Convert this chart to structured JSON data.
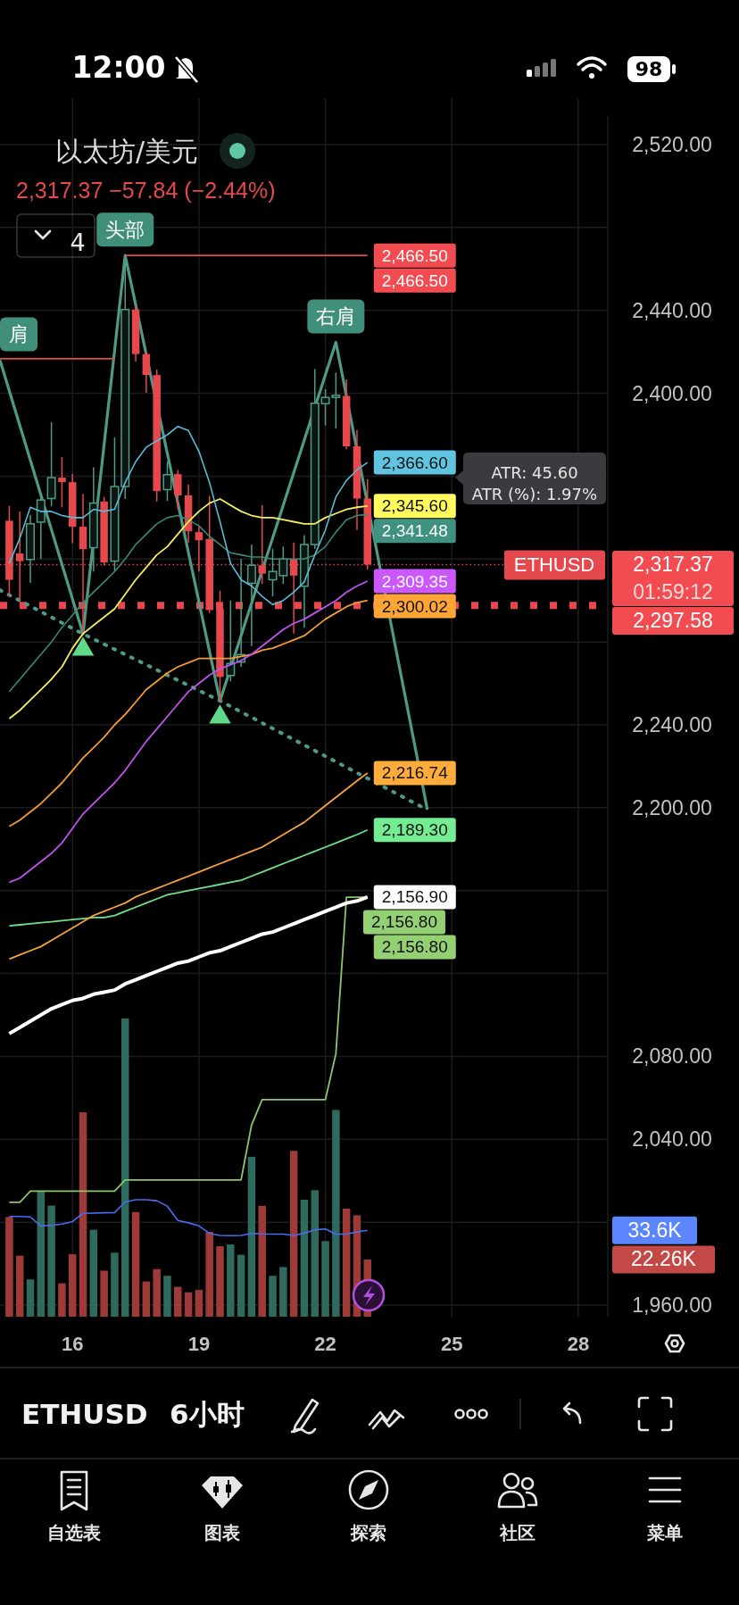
{
  "chart_data": {
    "type": "candlestick",
    "title": "以太坊/美元",
    "subtitle": "2,317.37 −57.84 (−2.44%)",
    "x": [
      14.5,
      14.75,
      15,
      15.25,
      15.5,
      15.75,
      16,
      16.25,
      16.5,
      16.75,
      17,
      17.25,
      17.5,
      17.75,
      18,
      18.25,
      18.5,
      18.75,
      19,
      19.25,
      19.5,
      19.75,
      20,
      20.25,
      20.5,
      20.75,
      21,
      21.25,
      21.5,
      21.75,
      22,
      22.25,
      22.5,
      22.75,
      23
    ],
    "ohlc": [
      [
        2338.5,
        2345.6,
        2302,
        2310
      ],
      [
        2322.7,
        2343,
        2300,
        2319
      ],
      [
        2319.8,
        2341.3,
        2308.5,
        2337
      ],
      [
        2337.8,
        2350,
        2320,
        2348.5
      ],
      [
        2349.2,
        2386,
        2345.6,
        2359.3
      ],
      [
        2359.3,
        2369.3,
        2345,
        2357.1
      ],
      [
        2357.1,
        2361,
        2327.7,
        2335.6
      ],
      [
        2335.6,
        2351.4,
        2283.9,
        2324.8
      ],
      [
        2325.5,
        2364.3,
        2314,
        2347
      ],
      [
        2347.8,
        2350,
        2317,
        2318.4
      ],
      [
        2319,
        2378.7,
        2314,
        2355
      ],
      [
        2355,
        2466.5,
        2349,
        2440.4
      ],
      [
        2440.4,
        2442,
        2415.3,
        2418.9
      ],
      [
        2418.9,
        2420,
        2400.2,
        2408.8
      ],
      [
        2408.8,
        2411.5,
        2347.8,
        2352.8
      ],
      [
        2353.5,
        2367,
        2348,
        2360.7
      ],
      [
        2361,
        2363,
        2344,
        2350.7
      ],
      [
        2350.7,
        2356,
        2328,
        2333.4
      ],
      [
        2333,
        2336,
        2314,
        2329.1
      ],
      [
        2329.7,
        2350.5,
        2294,
        2295.4
      ],
      [
        2296.1,
        2304.7,
        2250.9,
        2263.1
      ],
      [
        2263.8,
        2300,
        2261,
        2269.6
      ],
      [
        2270.3,
        2320,
        2268,
        2273.9
      ],
      [
        2308.3,
        2327,
        2278,
        2317
      ],
      [
        2317,
        2346,
        2308,
        2313
      ],
      [
        2310,
        2325,
        2302,
        2314
      ],
      [
        2312,
        2326,
        2308,
        2320
      ],
      [
        2320,
        2328,
        2284,
        2312
      ],
      [
        2306.9,
        2331.5,
        2286.8,
        2327
      ],
      [
        2327,
        2411.7,
        2325,
        2395.2
      ],
      [
        2395,
        2402,
        2384.4,
        2398
      ],
      [
        2398,
        2410,
        2383,
        2399
      ],
      [
        2398.7,
        2406.7,
        2373,
        2374.4
      ],
      [
        2374.4,
        2382.3,
        2334,
        2349.2
      ],
      [
        2349.2,
        2358.6,
        2315,
        2317.37
      ]
    ],
    "colors": [
      "#e5484d",
      "#e5484d",
      "#4e9c86",
      "#4e9c86",
      "#4e9c86",
      "#e5484d",
      "#e5484d",
      "#e5484d",
      "#4e9c86",
      "#e5484d",
      "#4e9c86",
      "#4e9c86",
      "#e5484d",
      "#e5484d",
      "#e5484d",
      "#4e9c86",
      "#e5484d",
      "#e5484d",
      "#e5484d",
      "#e5484d",
      "#e5484d",
      "#4e9c86",
      "#4e9c86",
      "#4e9c86",
      "#e5484d",
      "#4e9c86",
      "#4e9c86",
      "#e5484d",
      "#4e9c86",
      "#4e9c86",
      "#4e9c86",
      "#4e9c86",
      "#e5484d",
      "#e5484d",
      "#e5484d"
    ],
    "series": [
      {
        "type": "bar",
        "axis": "y2",
        "values": [
          38.8,
          23.7,
          14.5,
          48.6,
          43.2,
          13,
          24.3,
          79.5,
          33.8,
          17.9,
          24.9,
          116,
          40.7,
          13.7,
          18.5,
          15.9,
          11.6,
          9.5,
          10.4,
          33,
          27.4,
          28.1,
          24.1,
          62.2,
          43.1,
          15.9,
          19.3,
          64.5,
          45.5,
          49.2,
          29.4,
          80.4,
          42,
          39.4,
          22.26
        ],
        "colors": [
          "#9e3a38",
          "#9e3a38",
          "#2e6b5e",
          "#2e6b5e",
          "#2e6b5e",
          "#9e3a38",
          "#9e3a38",
          "#9e3a38",
          "#2e6b5e",
          "#9e3a38",
          "#2e6b5e",
          "#2e6b5e",
          "#9e3a38",
          "#9e3a38",
          "#9e3a38",
          "#2e6b5e",
          "#9e3a38",
          "#9e3a38",
          "#9e3a38",
          "#9e3a38",
          "#9e3a38",
          "#2e6b5e",
          "#2e6b5e",
          "#2e6b5e",
          "#9e3a38",
          "#2e6b5e",
          "#2e6b5e",
          "#9e3a38",
          "#2e6b5e",
          "#2e6b5e",
          "#2e6b5e",
          "#2e6b5e",
          "#9e3a38",
          "#9e3a38",
          "#9e3a38"
        ]
      },
      {
        "type": "line",
        "axis": "y2",
        "color": "#4a6cf0",
        "values": [
          39,
          39,
          38.8,
          35.3,
          35.6,
          36,
          37,
          40.2,
          40.3,
          40.4,
          40.5,
          44.6,
          45.5,
          45.5,
          45.1,
          43,
          37.4,
          36.5,
          35.3,
          32.4,
          31.6,
          31.5,
          31.6,
          32.4,
          32.2,
          32.1,
          32.1,
          31.6,
          32.5,
          33.8,
          34.1,
          32.1,
          32.1,
          33,
          33.6
        ]
      },
      {
        "type": "line",
        "color": "#8bc56d",
        "values": [
          2009.6,
          2009.6,
          2015,
          2015,
          2015,
          2015,
          2015,
          2015,
          2015,
          2015,
          2015,
          2020.4,
          2020.4,
          2020.4,
          2020.4,
          2020.4,
          2020.4,
          2020.4,
          2020.4,
          2020.4,
          2020.4,
          2020.4,
          2020.4,
          2047,
          2059.1,
          2059.1,
          2059.1,
          2059.1,
          2059.1,
          2059.1,
          2059.1,
          2081.4,
          2156.8,
          2156.8,
          2156.8
        ],
        "value_labels": [
          null,
          null,
          null,
          null,
          null,
          null,
          null,
          null,
          null,
          null,
          null,
          null,
          null,
          null,
          null,
          null,
          null,
          null,
          null,
          null,
          null,
          null,
          null,
          null,
          null,
          null,
          null,
          null,
          null,
          null,
          null,
          null,
          null,
          "2,156.80",
          "2,156.80"
        ]
      },
      {
        "type": "line",
        "color": "#ffffff",
        "values": [
          2091,
          2094,
          2097,
          2100,
          2103,
          2105,
          2107,
          2108,
          2110,
          2111,
          2112,
          2115,
          2117,
          2119,
          2121,
          2123,
          2125,
          2126,
          2128,
          2130,
          2131,
          2133,
          2135,
          2137,
          2139,
          2140,
          2142,
          2144,
          2146,
          2148,
          2150,
          2152,
          2154,
          2155,
          2156.9
        ],
        "value_labels": [
          null,
          null,
          null,
          null,
          null,
          null,
          null,
          null,
          null,
          null,
          null,
          null,
          null,
          null,
          null,
          null,
          null,
          null,
          null,
          null,
          null,
          null,
          null,
          null,
          null,
          null,
          null,
          null,
          null,
          null,
          null,
          null,
          null,
          null,
          "2,156.90"
        ]
      },
      {
        "type": "line",
        "color": "#6ee08a",
        "values": [
          2143,
          2143.5,
          2144,
          2144.5,
          2145,
          2145.5,
          2146,
          2146.5,
          2147,
          2147,
          2148,
          2150,
          2152,
          2154,
          2156,
          2158,
          2159,
          2160,
          2161,
          2162,
          2163,
          2164,
          2165,
          2167,
          2169,
          2171,
          2173,
          2175,
          2177,
          2179,
          2181,
          2183,
          2185,
          2187,
          2189.3
        ],
        "value_labels": [
          null,
          null,
          null,
          null,
          null,
          null,
          null,
          null,
          null,
          null,
          null,
          null,
          null,
          null,
          null,
          null,
          null,
          null,
          null,
          null,
          null,
          null,
          null,
          null,
          null,
          null,
          null,
          null,
          null,
          null,
          null,
          null,
          null,
          null,
          "2,189.30"
        ]
      },
      {
        "type": "line",
        "color": "#f5a33a",
        "values": [
          2127,
          2129,
          2131,
          2133,
          2136,
          2139,
          2142,
          2145,
          2148,
          2150,
          2152,
          2154,
          2157,
          2159,
          2161,
          2163,
          2165,
          2167,
          2169,
          2171,
          2173,
          2175,
          2177,
          2179,
          2181,
          2184,
          2187,
          2190,
          2193,
          2197,
          2201,
          2205,
          2209,
          2213,
          2216.74
        ],
        "value_labels": [
          null,
          null,
          null,
          null,
          null,
          null,
          null,
          null,
          null,
          null,
          null,
          null,
          null,
          null,
          null,
          null,
          null,
          null,
          null,
          null,
          null,
          null,
          null,
          null,
          null,
          null,
          null,
          null,
          null,
          null,
          null,
          null,
          null,
          null,
          "2,216.74"
        ]
      },
      {
        "type": "line",
        "color": "#f39c32",
        "values": [
          2191,
          2194,
          2198,
          2202,
          2207,
          2212,
          2218,
          2224,
          2229,
          2234,
          2240,
          2245,
          2251,
          2257,
          2261,
          2265,
          2268,
          2270,
          2272,
          2272,
          2272,
          2272,
          2273,
          2274,
          2276,
          2277,
          2279,
          2281,
          2283,
          2287,
          2291,
          2294,
          2297,
          2299,
          2300.02
        ],
        "value_labels": [
          null,
          null,
          null,
          null,
          null,
          null,
          null,
          null,
          null,
          null,
          null,
          null,
          null,
          null,
          null,
          null,
          null,
          null,
          null,
          null,
          null,
          null,
          null,
          null,
          null,
          null,
          null,
          null,
          null,
          null,
          null,
          null,
          null,
          null,
          "2,300.02"
        ]
      },
      {
        "type": "line",
        "color": "#c153f0",
        "values": [
          2164,
          2166,
          2170,
          2174,
          2178,
          2183,
          2190,
          2197,
          2202,
          2207,
          2212,
          2218,
          2225,
          2232,
          2238,
          2244,
          2250,
          2256,
          2260,
          2264,
          2267,
          2269,
          2271,
          2274,
          2278,
          2282,
          2286,
          2289,
          2291,
          2294,
          2297,
          2300,
          2304,
          2307,
          2309.35
        ],
        "value_labels": [
          null,
          null,
          null,
          null,
          null,
          null,
          null,
          null,
          null,
          null,
          null,
          null,
          null,
          null,
          null,
          null,
          null,
          null,
          null,
          null,
          null,
          null,
          null,
          null,
          null,
          null,
          null,
          null,
          null,
          null,
          null,
          null,
          null,
          null,
          "2,309.35"
        ]
      },
      {
        "type": "line",
        "color": "#3b8a78",
        "values": [
          2256,
          2262,
          2268,
          2274,
          2280,
          2287,
          2293,
          2299,
          2304,
          2309,
          2314,
          2320,
          2327,
          2332,
          2337,
          2340,
          2341,
          2339,
          2336,
          2331,
          2327,
          2323,
          2322,
          2321,
          2321,
          2320,
          2320,
          2320,
          2320,
          2322,
          2326,
          2333,
          2339,
          2341,
          2341.48
        ],
        "value_labels": [
          null,
          null,
          null,
          null,
          null,
          null,
          null,
          null,
          null,
          null,
          null,
          null,
          null,
          null,
          null,
          null,
          null,
          null,
          null,
          null,
          null,
          null,
          null,
          null,
          null,
          null,
          null,
          null,
          null,
          null,
          null,
          null,
          null,
          null,
          "2,341.48"
        ]
      },
      {
        "type": "line",
        "color": "#f5ee5a",
        "values": [
          2243,
          2247,
          2252,
          2257,
          2262,
          2268,
          2277,
          2284,
          2288,
          2292,
          2296,
          2303,
          2310,
          2316,
          2322,
          2326,
          2332,
          2338,
          2343,
          2347,
          2349,
          2346,
          2343,
          2341,
          2340,
          2340,
          2339,
          2338,
          2337,
          2337,
          2340,
          2342,
          2344,
          2345,
          2345.6
        ],
        "value_labels": [
          null,
          null,
          null,
          null,
          null,
          null,
          null,
          null,
          null,
          null,
          null,
          null,
          null,
          null,
          null,
          null,
          null,
          null,
          null,
          null,
          null,
          null,
          null,
          null,
          null,
          null,
          null,
          null,
          null,
          null,
          null,
          null,
          null,
          null,
          "2,345.60"
        ]
      },
      {
        "type": "line",
        "color": "#5bbad5",
        "values": [
          2318,
          2330,
          2345,
          2343,
          2343,
          2341,
          2340,
          2340,
          2344,
          2343,
          2344,
          2357,
          2367,
          2374,
          2377,
          2380,
          2384,
          2382,
          2372,
          2357,
          2338,
          2318,
          2310,
          2307,
          2302,
          2298,
          2300,
          2304,
          2309,
          2322,
          2334,
          2350,
          2358,
          2363,
          2366.6
        ],
        "value_labels": [
          null,
          null,
          null,
          null,
          null,
          null,
          null,
          null,
          null,
          null,
          null,
          null,
          null,
          null,
          null,
          null,
          null,
          null,
          null,
          null,
          null,
          null,
          null,
          null,
          null,
          null,
          null,
          null,
          null,
          null,
          null,
          null,
          null,
          null,
          "2,366.60"
        ]
      },
      {
        "type": "line",
        "color": "#4f9a87",
        "x": [
          14.28,
          16.25,
          17.25,
          19.5,
          22.25,
          24.42
        ],
        "values": [
          2416,
          2283.9,
          2466.5,
          2251.6,
          2424.6,
          2199
        ]
      },
      {
        "type": "line",
        "color": "#4f9a87",
        "line_style": "dotted",
        "x": [
          14.28,
          16.25,
          19.5,
          24.42
        ],
        "values": [
          2305,
          2283.9,
          2251.6,
          2199
        ]
      },
      {
        "type": "line",
        "color": "#e5484d",
        "x": [
          17.25,
          23,
          23
        ],
        "values": [
          2466.5,
          2466.5,
          2466.5
        ],
        "value_labels": [
          null,
          "2,466.50",
          "2,466.50"
        ]
      },
      {
        "type": "line",
        "color": "#e5484d",
        "x": [
          14.28,
          17
        ],
        "values": [
          2416.7,
          2416.7
        ]
      },
      {
        "type": "scatter",
        "color": "#5fd98a",
        "marker": "triangle",
        "x": [
          16.25,
          19.5
        ],
        "values": [
          2276.4,
          2243.7
        ]
      }
    ],
    "ref_lines": [
      {
        "axis": "y",
        "value": 2317.37,
        "label": "ETHUSD",
        "color": "#e5484d",
        "line_style": "dotted"
      },
      {
        "axis": "y",
        "value": 2297.58,
        "label": "2,297.58",
        "color": "#e5484d",
        "line_style": "dotted"
      }
    ],
    "xlim": [
      14.28,
      28.68
    ],
    "xticks": [
      16,
      19,
      22,
      25,
      28
    ],
    "ylim": [
      1960,
      2520
    ],
    "yticks": [
      {
        "value": 2520,
        "label": "2,520.00"
      },
      {
        "value": 2480,
        "label": null
      },
      {
        "value": 2440,
        "label": "2,440.00"
      },
      {
        "value": 2400,
        "label": "2,400.00"
      },
      {
        "value": 2360,
        "label": null
      },
      {
        "value": 2320,
        "label": null
      },
      {
        "value": 2280,
        "label": null
      },
      {
        "value": 2240,
        "label": "2,240.00"
      },
      {
        "value": 2200,
        "label": "2,200.00"
      },
      {
        "value": 2160,
        "label": null
      },
      {
        "value": 2120,
        "label": null
      },
      {
        "value": 2080,
        "label": "2,080.00"
      },
      {
        "value": 2040,
        "label": "2,040.00"
      },
      {
        "value": 2000,
        "label": null
      },
      {
        "value": 1960,
        "label": "1,960.00"
      }
    ],
    "y2lim": [
      0,
      467
    ],
    "y2ticks": [
      {
        "value": 33.6,
        "label": "33.6K"
      },
      {
        "value": 22.26,
        "label": "22.26K"
      }
    ],
    "grid": true,
    "annotations": [
      {
        "text": "头部",
        "x": 17.25,
        "y": 2466.5
      },
      {
        "text": "右肩",
        "x": 22.25,
        "y": 2424.6
      },
      {
        "text": "肩",
        "x": 14.28,
        "y": 2416
      },
      "ATR: 45.60",
      "ATR (%): 1.97%",
      "2,317.37",
      "01:59:12",
      "4",
      "12:00",
      "98",
      "ETHUSD",
      "6小时",
      "自选表",
      "图表",
      "探索",
      "社区",
      "菜单"
    ]
  }
}
